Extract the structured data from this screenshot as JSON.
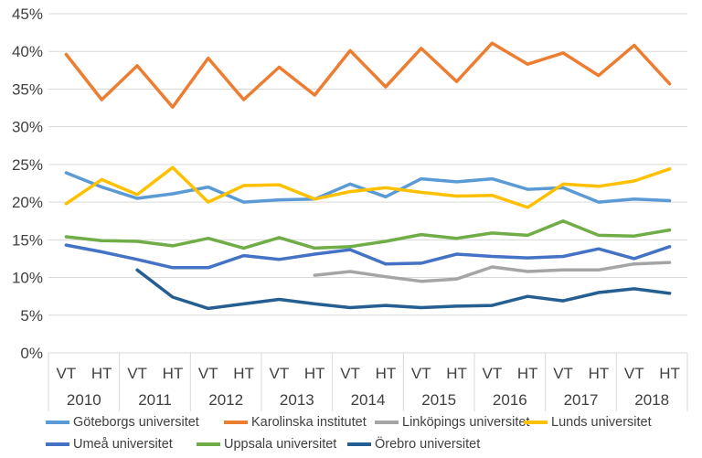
{
  "chart_data": {
    "type": "line",
    "title": "",
    "xlabel": "",
    "ylabel": "",
    "ylim": [
      0,
      45
    ],
    "yticks": [
      "0%",
      "5%",
      "10%",
      "15%",
      "20%",
      "25%",
      "30%",
      "35%",
      "40%",
      "45%"
    ],
    "terms": [
      "VT",
      "HT",
      "VT",
      "HT",
      "VT",
      "HT",
      "VT",
      "HT",
      "VT",
      "HT",
      "VT",
      "HT",
      "VT",
      "HT",
      "VT",
      "HT",
      "VT",
      "HT"
    ],
    "years": [
      "2010",
      "2011",
      "2012",
      "2013",
      "2014",
      "2015",
      "2016",
      "2017",
      "2018"
    ],
    "grid": true,
    "legend_position": "bottom",
    "series": [
      {
        "name": "Göteborgs universitet",
        "color": "#5b9bd5",
        "values": [
          23.9,
          22.0,
          20.5,
          21.1,
          22.0,
          20.0,
          20.3,
          20.4,
          22.4,
          20.7,
          23.1,
          22.7,
          23.1,
          21.7,
          21.9,
          20.0,
          20.4,
          20.2
        ]
      },
      {
        "name": "Karolinska institutet",
        "color": "#ed7d31",
        "values": [
          39.6,
          33.6,
          38.1,
          32.6,
          39.1,
          33.6,
          37.9,
          34.2,
          40.1,
          35.3,
          40.4,
          36.0,
          41.1,
          38.3,
          39.8,
          36.8,
          40.8,
          35.7
        ]
      },
      {
        "name": "Linköpings universitet",
        "color": "#a5a5a5",
        "values": [
          null,
          null,
          null,
          null,
          null,
          null,
          null,
          10.3,
          10.8,
          10.1,
          9.5,
          9.8,
          11.4,
          10.8,
          11.0,
          11.0,
          11.8,
          12.0
        ]
      },
      {
        "name": "Lunds universitet",
        "color": "#ffc000",
        "values": [
          19.8,
          23.0,
          21.0,
          24.6,
          20.0,
          22.2,
          22.3,
          20.4,
          21.4,
          21.9,
          21.3,
          20.8,
          20.9,
          19.3,
          22.4,
          22.1,
          22.8,
          24.4
        ]
      },
      {
        "name": "Umeå universitet",
        "color": "#4472c4",
        "values": [
          14.3,
          13.4,
          12.4,
          11.3,
          11.3,
          12.9,
          12.4,
          13.1,
          13.7,
          11.8,
          11.9,
          13.1,
          12.8,
          12.6,
          12.8,
          13.8,
          12.5,
          14.1
        ]
      },
      {
        "name": "Uppsala universitet",
        "color": "#70ad47",
        "values": [
          15.4,
          14.9,
          14.8,
          14.2,
          15.2,
          13.9,
          15.3,
          13.9,
          14.1,
          14.8,
          15.7,
          15.2,
          15.9,
          15.6,
          17.5,
          15.6,
          15.5,
          16.3
        ]
      },
      {
        "name": "Örebro universitet",
        "color": "#255e91",
        "values": [
          null,
          null,
          11.0,
          7.4,
          5.9,
          6.5,
          7.1,
          6.5,
          6.0,
          6.3,
          6.0,
          6.2,
          6.3,
          7.5,
          6.9,
          8.0,
          8.5,
          7.9
        ]
      }
    ]
  }
}
